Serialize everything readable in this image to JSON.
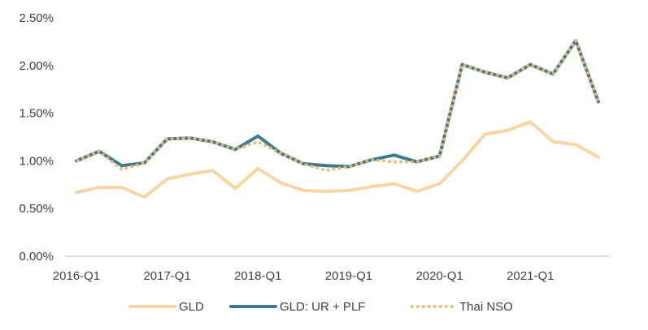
{
  "chart_data": {
    "type": "line",
    "x": [
      "2016-Q1",
      "2016-Q2",
      "2016-Q3",
      "2016-Q4",
      "2017-Q1",
      "2017-Q2",
      "2017-Q3",
      "2017-Q4",
      "2018-Q1",
      "2018-Q2",
      "2018-Q3",
      "2018-Q4",
      "2019-Q1",
      "2019-Q2",
      "2019-Q3",
      "2019-Q4",
      "2020-Q1",
      "2020-Q2",
      "2020-Q3",
      "2020-Q4",
      "2021-Q1",
      "2021-Q2",
      "2021-Q3",
      "2021-Q4"
    ],
    "x_tick_labels": [
      "2016-Q1",
      "2017-Q1",
      "2018-Q1",
      "2019-Q1",
      "2020-Q1",
      "2021-Q1"
    ],
    "y_tick_labels": [
      "0.00%",
      "0.50%",
      "1.00%",
      "1.50%",
      "2.00%",
      "2.50%"
    ],
    "ylim": [
      0,
      2.5
    ],
    "y_unit": "%",
    "title": "",
    "xlabel": "",
    "ylabel": "",
    "grid": false,
    "legend_position": "bottom",
    "series": [
      {
        "name": "GLD",
        "color": "#f8d5a3",
        "style": "solid",
        "values": [
          0.67,
          0.72,
          0.72,
          0.62,
          0.81,
          0.86,
          0.9,
          0.71,
          0.92,
          0.77,
          0.69,
          0.68,
          0.69,
          0.73,
          0.76,
          0.68,
          0.76,
          1.0,
          1.28,
          1.32,
          1.41,
          1.2,
          1.17,
          1.04
        ]
      },
      {
        "name": "GLD: UR + PLF",
        "color": "#3b7a8f",
        "style": "solid",
        "values": [
          1.0,
          1.1,
          0.95,
          0.98,
          1.23,
          1.24,
          1.2,
          1.12,
          1.26,
          1.08,
          0.97,
          0.95,
          0.94,
          1.01,
          1.06,
          0.99,
          1.05,
          2.01,
          1.93,
          1.87,
          2.01,
          1.91,
          2.26,
          1.62
        ]
      },
      {
        "name": "Thai NSO",
        "color": "#f0b56e",
        "style": "dotted",
        "values": [
          1.0,
          1.1,
          0.91,
          0.98,
          1.23,
          1.24,
          1.2,
          1.12,
          1.2,
          1.08,
          0.97,
          0.9,
          0.94,
          1.01,
          0.99,
          0.99,
          1.05,
          2.01,
          1.93,
          1.87,
          2.01,
          1.91,
          2.26,
          1.62
        ]
      }
    ]
  }
}
